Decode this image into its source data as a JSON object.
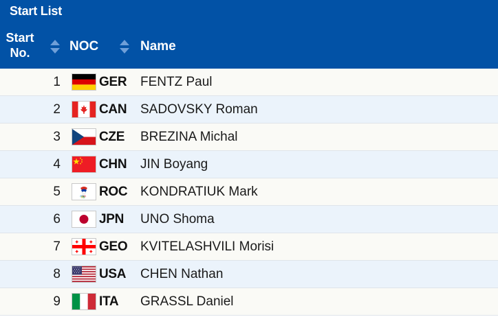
{
  "title": "Start List",
  "columns": {
    "start_line1": "Start",
    "start_line2": "No.",
    "noc": "NOC",
    "name": "Name"
  },
  "colors": {
    "header": "#0252a6",
    "row_odd": "#fafaf6",
    "row_even": "#ebf3fb"
  },
  "rows": [
    {
      "no": "1",
      "noc": "GER",
      "name": "FENTZ Paul",
      "flag": "germany-flag-icon"
    },
    {
      "no": "2",
      "noc": "CAN",
      "name": "SADOVSKY Roman",
      "flag": "canada-flag-icon"
    },
    {
      "no": "3",
      "noc": "CZE",
      "name": "BREZINA Michal",
      "flag": "czech-flag-icon"
    },
    {
      "no": "4",
      "noc": "CHN",
      "name": "JIN Boyang",
      "flag": "china-flag-icon"
    },
    {
      "no": "5",
      "noc": "ROC",
      "name": "KONDRATIUK Mark",
      "flag": "roc-emblem-icon"
    },
    {
      "no": "6",
      "noc": "JPN",
      "name": "UNO Shoma",
      "flag": "japan-flag-icon"
    },
    {
      "no": "7",
      "noc": "GEO",
      "name": "KVITELASHVILI Morisi",
      "flag": "georgia-flag-icon"
    },
    {
      "no": "8",
      "noc": "USA",
      "name": "CHEN Nathan",
      "flag": "usa-flag-icon"
    },
    {
      "no": "9",
      "noc": "ITA",
      "name": "GRASSL Daniel",
      "flag": "italy-flag-icon"
    }
  ]
}
